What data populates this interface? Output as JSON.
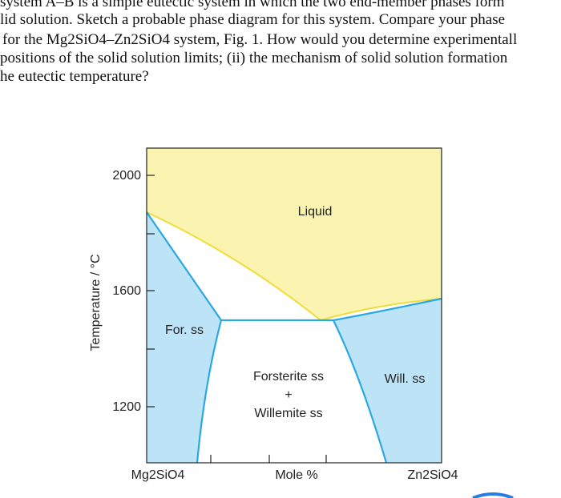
{
  "question": {
    "lines": [
      "system A–B is a simple eutectic system in which the two end-member phases form",
      "lid solution. Sketch a probable phase diagram for this system. Compare your phase",
      "for the Mg2SiO4–Zn2SiO4 system, Fig. 1. How would you determine experimentall",
      "positions of the solid solution limits; (ii) the mechanism of solid solution formation",
      "he eutectic temperature?"
    ]
  },
  "figure": {
    "y_axis_label": "Temperature / °C",
    "y_tick_labels": [
      "2000",
      "1600",
      "1200"
    ],
    "x_labels": [
      "Mg2SiO4",
      "Mole %",
      "Zn2SiO4"
    ],
    "regions": [
      "Liquid",
      "For. ss",
      "Forsterite ss",
      "+",
      "Willemite ss",
      "Will. ss"
    ]
  }
}
